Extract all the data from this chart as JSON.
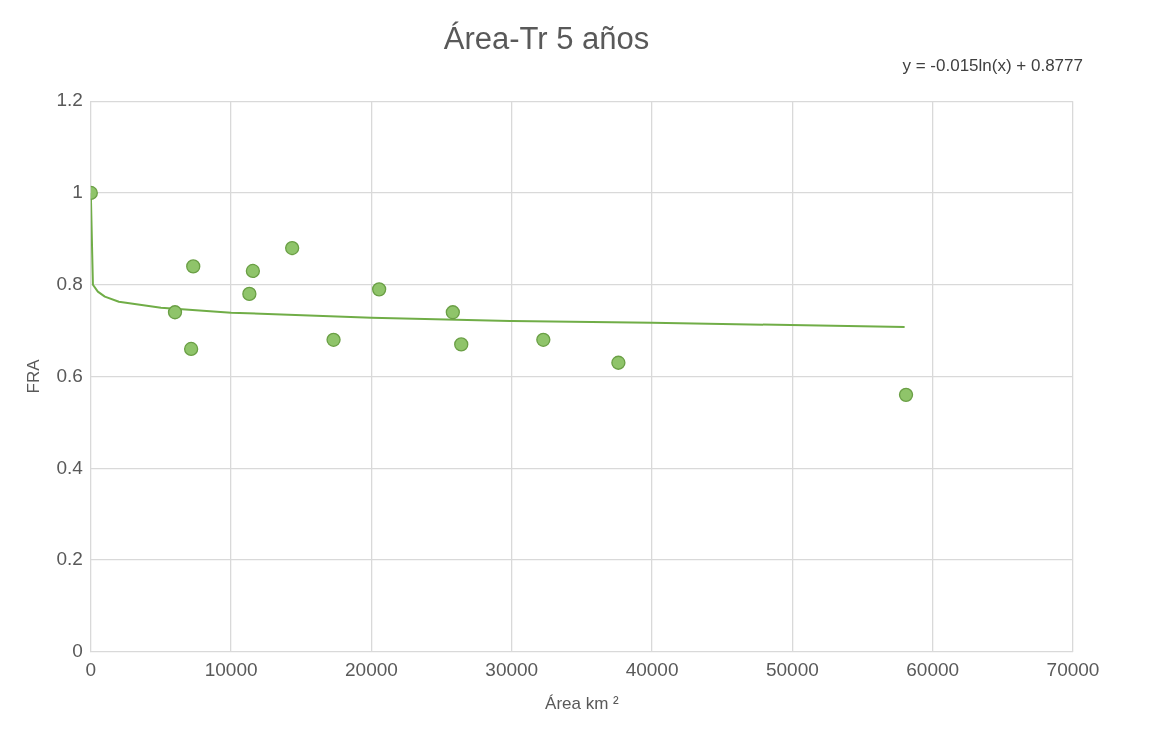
{
  "chart_data": {
    "type": "scatter",
    "title": "Área-Tr 5 años",
    "xlabel": "Área km ²",
    "ylabel": "FRA",
    "xlim": [
      0,
      70000
    ],
    "xticks": [
      0,
      10000,
      20000,
      30000,
      40000,
      50000,
      60000,
      70000
    ],
    "ylim": [
      0,
      1.2
    ],
    "yticks": [
      0,
      0.2,
      0.4,
      0.6,
      0.8,
      1,
      1.2
    ],
    "grid": true,
    "legend": false,
    "marker": "circle",
    "annotations": [
      "y = -0.015ln(x) + 0.8777"
    ],
    "series": [
      {
        "color": "#8fc46a",
        "x": [
          0,
          6000,
          7150,
          7300,
          11300,
          11550,
          14350,
          17300,
          20550,
          25800,
          26400,
          32250,
          37600,
          58100
        ],
        "values": [
          1,
          0.74,
          0.66,
          0.84,
          0.78,
          0.83,
          0.88,
          0.68,
          0.79,
          0.74,
          0.67,
          0.68,
          0.63,
          0.56
        ]
      },
      {
        "type": "line",
        "color": "#70ad47",
        "marker": "none",
        "x": [
          0,
          150,
          500,
          1000,
          2000,
          5000,
          10000,
          20000,
          30000,
          40000,
          58000
        ],
        "values": [
          1,
          0.8,
          0.785,
          0.774,
          0.763,
          0.75,
          0.739,
          0.728,
          0.721,
          0.717,
          0.708
        ]
      }
    ]
  }
}
